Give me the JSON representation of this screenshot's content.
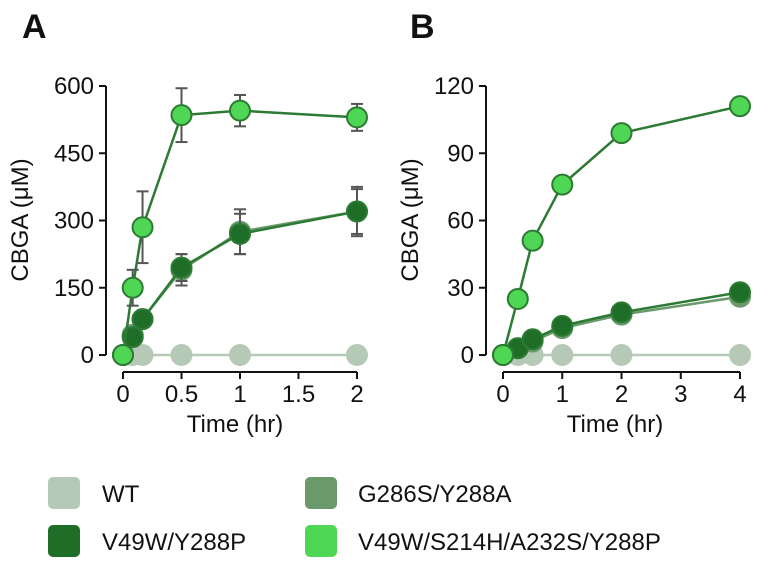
{
  "legend": [
    {
      "label": "WT",
      "color": "#b6c9b6"
    },
    {
      "label": "G286S/Y288A",
      "color": "#6a9a6c"
    },
    {
      "label": "V49W/Y288P",
      "color": "#1f6e28"
    },
    {
      "label": "V49W/S214H/A232S/Y288P",
      "color": "#4fd654"
    }
  ],
  "chart_data": [
    {
      "panel_label": "A",
      "type": "line",
      "xlabel": "Time (hr)",
      "ylabel": "CBGA (μM)",
      "xlim": [
        0,
        2
      ],
      "ylim": [
        0,
        600
      ],
      "xticks": [
        0,
        0.5,
        1,
        1.5,
        2
      ],
      "xtick_labels": [
        "0",
        "0.5",
        "1",
        "1.5",
        "2"
      ],
      "yticks": [
        0,
        150,
        300,
        450,
        600
      ],
      "ytick_labels": [
        "0",
        "150",
        "300",
        "450",
        "600"
      ],
      "grid": false,
      "series": [
        {
          "name": "WT",
          "color": "#b6c9b6",
          "x": [
            0,
            0.083,
            0.167,
            0.5,
            1,
            2
          ],
          "y": [
            0,
            0,
            0,
            0,
            0,
            0
          ],
          "err": [
            0,
            0,
            0,
            0,
            0,
            0
          ]
        },
        {
          "name": "G286S/Y288A",
          "color": "#6a9a6c",
          "x": [
            0,
            0.083,
            0.167,
            0.5,
            1,
            2
          ],
          "y": [
            0,
            45,
            80,
            190,
            275,
            320
          ],
          "err": [
            0,
            10,
            15,
            35,
            50,
            55
          ]
        },
        {
          "name": "V49W/Y288P",
          "color": "#1f6e28",
          "x": [
            0,
            0.083,
            0.167,
            0.5,
            1,
            2
          ],
          "y": [
            0,
            40,
            80,
            195,
            270,
            320
          ],
          "err": [
            0,
            10,
            15,
            30,
            45,
            50
          ]
        },
        {
          "name": "V49W/S214H/A232S/Y288P",
          "color": "#4fd654",
          "x": [
            0,
            0.083,
            0.167,
            0.5,
            1,
            2
          ],
          "y": [
            0,
            150,
            285,
            535,
            545,
            530
          ],
          "err": [
            0,
            40,
            80,
            60,
            35,
            30
          ]
        }
      ]
    },
    {
      "panel_label": "B",
      "type": "line",
      "xlabel": "Time (hr)",
      "ylabel": "CBGA (μM)",
      "xlim": [
        0,
        4
      ],
      "ylim": [
        0,
        120
      ],
      "xticks": [
        0,
        1,
        2,
        3,
        4
      ],
      "xtick_labels": [
        "0",
        "1",
        "2",
        "3",
        "4"
      ],
      "yticks": [
        0,
        30,
        60,
        90,
        120
      ],
      "ytick_labels": [
        "0",
        "30",
        "60",
        "90",
        "120"
      ],
      "grid": false,
      "series": [
        {
          "name": "WT",
          "color": "#b6c9b6",
          "x": [
            0,
            0.25,
            0.5,
            1,
            2,
            4
          ],
          "y": [
            0,
            0,
            0,
            0,
            0,
            0
          ],
          "err": [
            0,
            0,
            0,
            0,
            0,
            0
          ]
        },
        {
          "name": "G286S/Y288A",
          "color": "#6a9a6c",
          "x": [
            0,
            0.25,
            0.5,
            1,
            2,
            4
          ],
          "y": [
            0,
            3,
            6,
            12,
            18,
            26
          ],
          "err": [
            0,
            0,
            0,
            0,
            0,
            0
          ]
        },
        {
          "name": "V49W/Y288P",
          "color": "#1f6e28",
          "x": [
            0,
            0.25,
            0.5,
            1,
            2,
            4
          ],
          "y": [
            0,
            3,
            7,
            13,
            19,
            28
          ],
          "err": [
            0,
            0,
            0,
            0,
            0,
            0
          ]
        },
        {
          "name": "V49W/S214H/A232S/Y288P",
          "color": "#4fd654",
          "x": [
            0,
            0.25,
            0.5,
            1,
            2,
            4
          ],
          "y": [
            0,
            25,
            51,
            76,
            99,
            111
          ],
          "err": [
            0,
            0,
            0,
            0,
            0,
            0
          ]
        }
      ]
    }
  ]
}
